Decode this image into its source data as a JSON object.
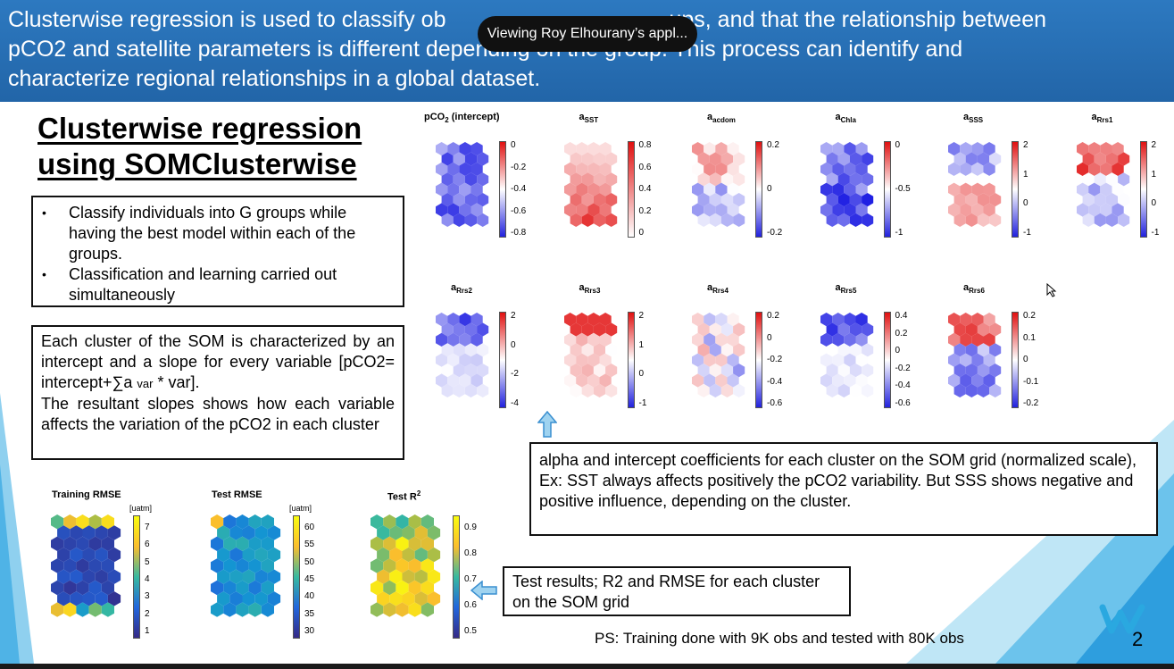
{
  "banner": {
    "line1": "Clusterwise regression is used to classify ob",
    "line1_tail": "ups, and that the relationship between",
    "line2": "pCO2 and satellite parameters is different depending on the group. This process can identify and",
    "line3": "characterize regional relationships in a global dataset."
  },
  "toast": {
    "text": "Viewing Roy Elhourany’s appl..."
  },
  "heading": {
    "line1": "Clusterwise regression",
    "line2": "using SOMClusterwise"
  },
  "bullets": [
    "Classify individuals into G groups while having the best model within each of the groups.",
    "Classification and learning carried out simultaneously"
  ],
  "cluster_text": {
    "p1_a": "Each cluster of the SOM is characterized by an intercept and a slope for every variable [pCO2= intercept+∑a",
    "p1_sub": "var",
    "p1_b": "* var].",
    "p2": "The resultant slopes shows how each variable affects the variation of the pCO2 in each cluster"
  },
  "alpha_text": "alpha and intercept coefficients for each cluster on the SOM grid (normalized scale), Ex: SST always affects positively the pCO2 variability. But SSS shows negative and positive influence, depending on the cluster.",
  "test_text": "Test results; R2 and RMSE for each cluster on the SOM grid",
  "ps_text": "PS: Training done with 9K obs and tested with 80K obs",
  "page_number": "2",
  "colors": {
    "banner": "#2a72b8",
    "diverging_neg": "#2222dd",
    "diverging_pos": "#e01010"
  },
  "coef_maps": [
    {
      "title_main": "pCO",
      "title_sub": "2",
      "title_tail": " (intercept)",
      "ticks": [
        "0",
        "-0.2",
        "-0.4",
        "-0.6",
        "-0.8"
      ]
    },
    {
      "title_main": "a",
      "title_sub": "SST",
      "title_tail": "",
      "ticks": [
        "0.8",
        "0.6",
        "0.4",
        "0.2",
        "0"
      ]
    },
    {
      "title_main": "a",
      "title_sub": "acdom",
      "title_tail": "",
      "ticks": [
        "0.2",
        "0",
        "-0.2"
      ]
    },
    {
      "title_main": "a",
      "title_sub": "Chla",
      "title_tail": "",
      "ticks": [
        "0",
        "-0.5",
        "-1"
      ]
    },
    {
      "title_main": "a",
      "title_sub": "SSS",
      "title_tail": "",
      "ticks": [
        "2",
        "1",
        "0",
        "-1"
      ]
    },
    {
      "title_main": "a",
      "title_sub": "Rrs1",
      "title_tail": "",
      "ticks": [
        "2",
        "1",
        "0",
        "-1"
      ]
    },
    {
      "title_main": "a",
      "title_sub": "Rrs2",
      "title_tail": "",
      "ticks": [
        "2",
        "0",
        "-2",
        "-4"
      ]
    },
    {
      "title_main": "a",
      "title_sub": "Rrs3",
      "title_tail": "",
      "ticks": [
        "2",
        "1",
        "0",
        "-1"
      ]
    },
    {
      "title_main": "a",
      "title_sub": "Rrs4",
      "title_tail": "",
      "ticks": [
        "0.2",
        "0",
        "-0.2",
        "-0.4",
        "-0.6"
      ]
    },
    {
      "title_main": "a",
      "title_sub": "Rrs5",
      "title_tail": "",
      "ticks": [
        "0.4",
        "0.2",
        "0",
        "-0.2",
        "-0.4",
        "-0.6"
      ]
    },
    {
      "title_main": "a",
      "title_sub": "Rrs6",
      "title_tail": "",
      "ticks": [
        "0.2",
        "0.1",
        "0",
        "-0.1",
        "-0.2"
      ]
    }
  ],
  "metric_maps": [
    {
      "title": "Training RMSE",
      "title_sup": "",
      "unit": "[uatm]",
      "ticks": [
        "7",
        "6",
        "5",
        "4",
        "3",
        "2",
        "1"
      ]
    },
    {
      "title": "Test RMSE",
      "title_sup": "",
      "unit": "[uatm]",
      "ticks": [
        "60",
        "55",
        "50",
        "45",
        "40",
        "35",
        "30"
      ]
    },
    {
      "title": "Test R",
      "title_sup": "2",
      "unit": "",
      "ticks": [
        "0.9",
        "0.8",
        "0.7",
        "0.6",
        "0.5"
      ]
    }
  ]
}
